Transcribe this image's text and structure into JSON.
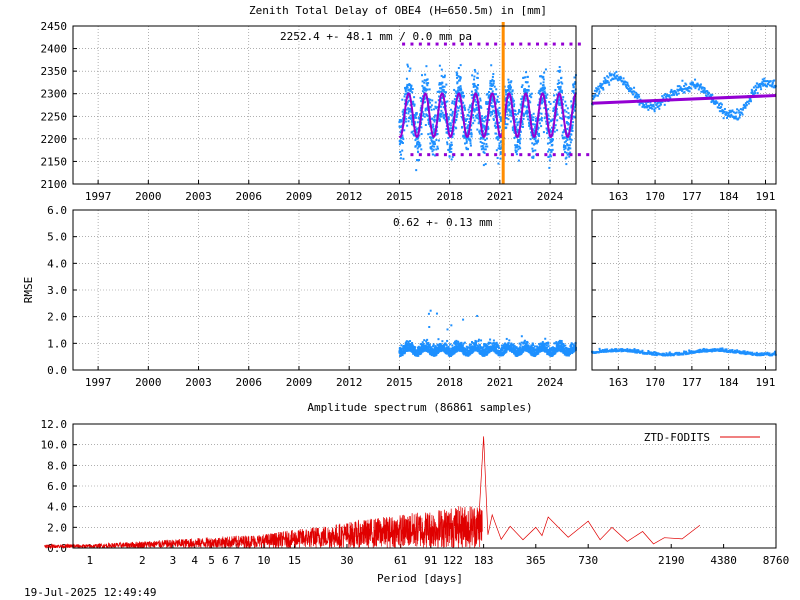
{
  "colors": {
    "series_blue": "#1e90ff",
    "trend_purple": "#9400d3",
    "marker_orange": "#ff8c00",
    "spectrum_red": "#e00000",
    "grid": "#808080"
  },
  "footer": {
    "timestamp": "19-Jul-2025 12:49:49"
  },
  "chart_data": [
    {
      "id": "ztd_full",
      "type": "scatter",
      "title": "Zenith Total Delay of OBE4 (H=650.5m) in [mm]",
      "annotation": "2252.4 +-  48.1 mm /  0.0 mm pa",
      "xlim": [
        1995.5,
        2025.55
      ],
      "ylim": [
        2100,
        2450
      ],
      "xticks": [
        1997,
        2000,
        2003,
        2006,
        2009,
        2012,
        2015,
        2018,
        2021,
        2024
      ],
      "yticks": [
        2100,
        2150,
        2200,
        2250,
        2300,
        2350,
        2400,
        2450
      ],
      "data_start": 2015.0,
      "mean": 2252.4,
      "std": 48.1,
      "seasonal_amplitude": 48.1,
      "trend_per_year": 0.0,
      "marker_x": 2021.2,
      "grid": true
    },
    {
      "id": "ztd_recent",
      "type": "scatter",
      "xlim": [
        158,
        193
      ],
      "ylim": [
        2100,
        2450
      ],
      "xticks": [
        163,
        170,
        177,
        184,
        191
      ],
      "trend_line": {
        "x": [
          158,
          193
        ],
        "y": [
          2279,
          2296
        ]
      },
      "grid": true
    },
    {
      "id": "rmse_full",
      "type": "scatter",
      "annotation": "0.62 +-  0.13 mm",
      "ylabel": "RMSE",
      "xlim": [
        1995.5,
        2025.55
      ],
      "ylim": [
        0.0,
        6.0
      ],
      "xticks": [
        1997,
        2000,
        2003,
        2006,
        2009,
        2012,
        2015,
        2018,
        2021,
        2024
      ],
      "yticks": [
        0.0,
        1.0,
        2.0,
        3.0,
        4.0,
        5.0,
        6.0
      ],
      "data_start": 2015.0,
      "mean": 0.62,
      "std": 0.13,
      "grid": true
    },
    {
      "id": "rmse_recent",
      "type": "scatter",
      "xlim": [
        158,
        193
      ],
      "ylim": [
        0.0,
        6.0
      ],
      "xticks": [
        163,
        170,
        177,
        184,
        191
      ],
      "grid": true
    },
    {
      "id": "spectrum",
      "type": "line",
      "title": "Amplitude spectrum (86861 samples)",
      "xlabel": "Period [days]",
      "ylim": [
        0.0,
        12.0
      ],
      "yticks": [
        0.0,
        2.0,
        4.0,
        6.0,
        8.0,
        10.0,
        12.0
      ],
      "xscale": "log",
      "xlim": [
        0.8,
        8760
      ],
      "xticks": [
        1,
        2,
        3,
        4,
        5,
        6,
        7,
        10,
        15,
        30,
        61,
        91,
        122,
        183,
        365,
        730,
        2190,
        4380,
        8760
      ],
      "series": [
        {
          "name": "ZTD-FODITS",
          "peaks": [
            {
              "period": 183,
              "amplitude": 10.8
            },
            {
              "period": 205,
              "amplitude": 3.2
            },
            {
              "period": 260,
              "amplitude": 2.1
            },
            {
              "period": 365,
              "amplitude": 2.0
            },
            {
              "period": 430,
              "amplitude": 3.0
            },
            {
              "period": 730,
              "amplitude": 2.6
            },
            {
              "period": 1000,
              "amplitude": 2.0
            },
            {
              "period": 1500,
              "amplitude": 1.6
            },
            {
              "period": 2000,
              "amplitude": 1.0
            },
            {
              "period": 3200,
              "amplitude": 2.2
            }
          ]
        }
      ],
      "legend_position": "top-right",
      "grid": true
    }
  ]
}
